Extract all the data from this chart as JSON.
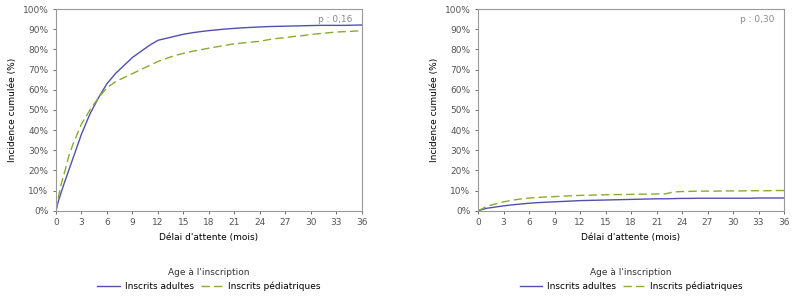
{
  "left_plot": {
    "p_value": "p : 0,16",
    "adults_x": [
      0,
      0.3,
      0.6,
      1,
      1.5,
      2,
      3,
      4,
      5,
      6,
      7,
      8,
      9,
      10,
      11,
      12,
      13,
      14,
      15,
      16,
      17,
      18,
      19,
      20,
      21,
      22,
      23,
      24,
      25,
      26,
      27,
      28,
      29,
      30,
      31,
      32,
      33,
      34,
      35,
      36
    ],
    "adults_y": [
      0,
      0.05,
      0.09,
      0.14,
      0.2,
      0.26,
      0.38,
      0.48,
      0.56,
      0.63,
      0.68,
      0.72,
      0.76,
      0.79,
      0.82,
      0.845,
      0.855,
      0.865,
      0.875,
      0.882,
      0.888,
      0.893,
      0.897,
      0.901,
      0.904,
      0.907,
      0.909,
      0.911,
      0.913,
      0.914,
      0.915,
      0.916,
      0.917,
      0.918,
      0.919,
      0.919,
      0.919,
      0.919,
      0.92,
      0.921
    ],
    "ped_x": [
      0,
      0.3,
      0.6,
      1,
      1.5,
      2,
      2.5,
      3,
      4,
      5,
      6,
      7,
      8,
      9,
      10,
      11,
      12,
      13,
      14,
      15,
      16,
      17,
      18,
      19,
      20,
      21,
      22,
      23,
      24,
      25,
      26,
      27,
      28,
      29,
      30,
      31,
      32,
      33,
      34,
      35,
      36
    ],
    "ped_y": [
      0,
      0.07,
      0.13,
      0.19,
      0.27,
      0.33,
      0.38,
      0.43,
      0.5,
      0.56,
      0.61,
      0.64,
      0.66,
      0.68,
      0.7,
      0.72,
      0.74,
      0.755,
      0.77,
      0.78,
      0.79,
      0.798,
      0.806,
      0.813,
      0.82,
      0.828,
      0.832,
      0.836,
      0.84,
      0.848,
      0.854,
      0.858,
      0.864,
      0.868,
      0.874,
      0.878,
      0.882,
      0.886,
      0.888,
      0.89,
      0.893
    ]
  },
  "right_plot": {
    "p_value": "p : 0,30",
    "adults_x": [
      0,
      0.5,
      1,
      2,
      3,
      4,
      5,
      6,
      7,
      8,
      9,
      10,
      11,
      12,
      13,
      14,
      15,
      16,
      17,
      18,
      19,
      20,
      21,
      22,
      23,
      24,
      25,
      26,
      27,
      28,
      29,
      30,
      31,
      32,
      33,
      34,
      35,
      36
    ],
    "adults_y": [
      0,
      0.006,
      0.012,
      0.018,
      0.024,
      0.029,
      0.033,
      0.037,
      0.04,
      0.042,
      0.044,
      0.046,
      0.048,
      0.05,
      0.051,
      0.052,
      0.053,
      0.054,
      0.055,
      0.056,
      0.057,
      0.058,
      0.059,
      0.059,
      0.06,
      0.061,
      0.061,
      0.062,
      0.062,
      0.062,
      0.062,
      0.062,
      0.062,
      0.062,
      0.063,
      0.063,
      0.063,
      0.063
    ],
    "ped_x": [
      0,
      0.5,
      1,
      2,
      3,
      4,
      5,
      6,
      7,
      8,
      9,
      10,
      11,
      12,
      13,
      14,
      15,
      16,
      17,
      18,
      19,
      20,
      21,
      22,
      23,
      24,
      25,
      26,
      27,
      28,
      29,
      30,
      31,
      32,
      33,
      34,
      35,
      36
    ],
    "ped_y": [
      0,
      0.01,
      0.022,
      0.033,
      0.044,
      0.052,
      0.058,
      0.063,
      0.066,
      0.068,
      0.07,
      0.072,
      0.074,
      0.076,
      0.077,
      0.078,
      0.079,
      0.08,
      0.08,
      0.081,
      0.082,
      0.082,
      0.083,
      0.083,
      0.093,
      0.095,
      0.096,
      0.097,
      0.097,
      0.097,
      0.098,
      0.098,
      0.098,
      0.099,
      0.099,
      0.099,
      0.1,
      0.1
    ]
  },
  "adults_color": "#5050b0",
  "ped_color": "#8aac30",
  "xlabel": "Délai d'attente (mois)",
  "ylabel": "Incidence cumulée (%)",
  "xticks": [
    0,
    3,
    6,
    9,
    12,
    15,
    18,
    21,
    24,
    27,
    30,
    33,
    36
  ],
  "yticks": [
    0,
    0.1,
    0.2,
    0.3,
    0.4,
    0.5,
    0.6,
    0.7,
    0.8,
    0.9,
    1.0
  ],
  "legend_prefix": "Age à l'inscription",
  "legend_adults": "Inscrits adultes",
  "legend_ped": "Inscrits pédiatriques",
  "fontsize": 6.5,
  "linewidth": 1.0,
  "spine_color": "#999999",
  "text_color": "#888888"
}
